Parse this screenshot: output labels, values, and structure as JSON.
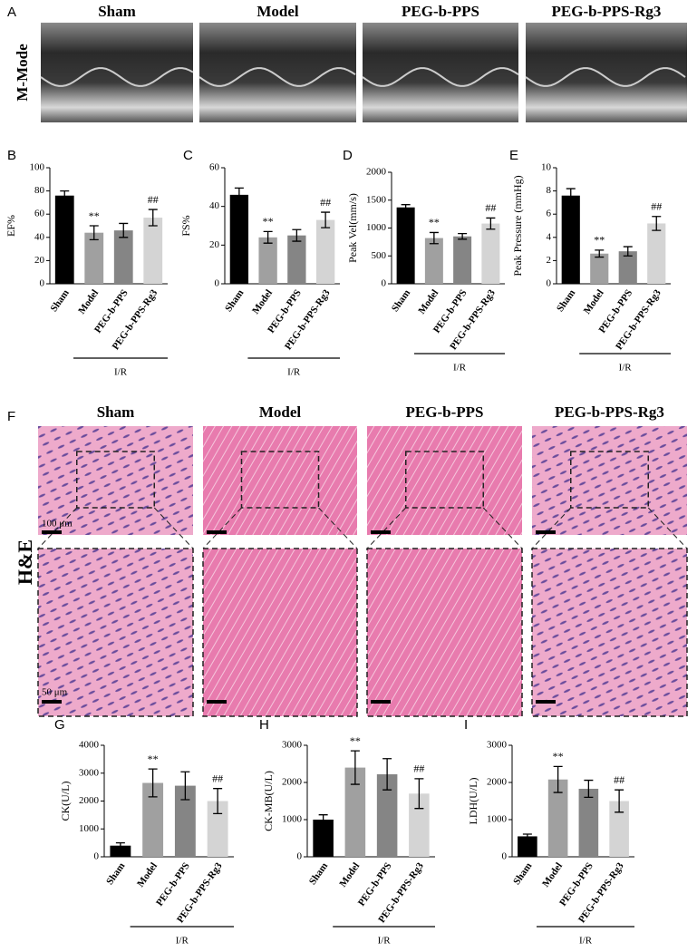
{
  "panel_a": {
    "letter": "A",
    "side_label": "M-Mode",
    "titles": [
      "Sham",
      "Model",
      "PEG-b-PPS",
      "PEG-b-PPS-Rg3"
    ]
  },
  "panel_f": {
    "letter": "F",
    "side_label": "H&E",
    "titles": [
      "Sham",
      "Model",
      "PEG-b-PPS",
      "PEG-b-PPS-Rg3"
    ],
    "scale_bars": [
      "100 μm",
      "50 μm"
    ]
  },
  "chart_data": [
    {
      "type": "bar",
      "letter": "B",
      "ylabel": "EF%",
      "categories": [
        "Sham",
        "Model",
        "PEG-b-PPS",
        "PEG-b-PPS-Rg3"
      ],
      "values": [
        76,
        44,
        46,
        57
      ],
      "errors": [
        4,
        6,
        6,
        7
      ],
      "value_annotations": [
        null,
        "**",
        null,
        "##"
      ],
      "colors": [
        "#000000",
        "#a0a0a0",
        "#858585",
        "#d4d4d4"
      ],
      "ylim": [
        0,
        100
      ],
      "yticks": [
        0,
        20,
        40,
        60,
        80,
        100
      ],
      "group_label": "I/R"
    },
    {
      "type": "bar",
      "letter": "C",
      "ylabel": "FS%",
      "categories": [
        "Sham",
        "Model",
        "PEG-b-PPS",
        "PEG-b-PPS-Rg3"
      ],
      "values": [
        46,
        24,
        25,
        33
      ],
      "errors": [
        3.5,
        3,
        3,
        4
      ],
      "value_annotations": [
        null,
        "**",
        null,
        "##"
      ],
      "colors": [
        "#000000",
        "#a0a0a0",
        "#858585",
        "#d4d4d4"
      ],
      "ylim": [
        0,
        60
      ],
      "yticks": [
        0,
        20,
        40,
        60
      ],
      "group_label": "I/R"
    },
    {
      "type": "bar",
      "letter": "D",
      "ylabel": "Peak Vel(mm/s)",
      "categories": [
        "Sham",
        "Model",
        "PEG-b-PPS",
        "PEG-b-PPS-Rg3"
      ],
      "values": [
        1370,
        820,
        850,
        1080
      ],
      "errors": [
        50,
        100,
        50,
        100
      ],
      "value_annotations": [
        null,
        "**",
        null,
        "##"
      ],
      "colors": [
        "#000000",
        "#a0a0a0",
        "#858585",
        "#d4d4d4"
      ],
      "ylim": [
        0,
        2000
      ],
      "yticks": [
        0,
        500,
        1000,
        1500,
        2000
      ],
      "group_label": "I/R"
    },
    {
      "type": "bar",
      "letter": "E",
      "ylabel": "Peak Pressure (mmHg)",
      "categories": [
        "Sham",
        "Model",
        "PEG-b-PPS",
        "PEG-b-PPS-Rg3"
      ],
      "values": [
        7.6,
        2.6,
        2.8,
        5.2
      ],
      "errors": [
        0.6,
        0.3,
        0.4,
        0.6
      ],
      "value_annotations": [
        null,
        "**",
        null,
        "##"
      ],
      "colors": [
        "#000000",
        "#a0a0a0",
        "#858585",
        "#d4d4d4"
      ],
      "ylim": [
        0,
        10
      ],
      "yticks": [
        0,
        2,
        4,
        6,
        8,
        10
      ],
      "group_label": "I/R"
    },
    {
      "type": "bar",
      "letter": "G",
      "ylabel": "CK(U/L)",
      "categories": [
        "Sham",
        "Model",
        "PEG-b-PPS",
        "PEG-b-PPS-Rg3"
      ],
      "values": [
        400,
        2650,
        2550,
        2000
      ],
      "errors": [
        100,
        500,
        500,
        450
      ],
      "value_annotations": [
        null,
        "**",
        null,
        "##"
      ],
      "colors": [
        "#000000",
        "#a0a0a0",
        "#858585",
        "#d4d4d4"
      ],
      "ylim": [
        0,
        4000
      ],
      "yticks": [
        0,
        1000,
        2000,
        3000,
        4000
      ],
      "group_label": "I/R"
    },
    {
      "type": "bar",
      "letter": "H",
      "ylabel": "CK-MB(U/L)",
      "categories": [
        "Sham",
        "Model",
        "PEG-b-PPS",
        "PEG-b-PPS-Rg3"
      ],
      "values": [
        1000,
        2400,
        2220,
        1700
      ],
      "errors": [
        130,
        450,
        420,
        400
      ],
      "value_annotations": [
        null,
        "**",
        null,
        "##"
      ],
      "colors": [
        "#000000",
        "#a0a0a0",
        "#858585",
        "#d4d4d4"
      ],
      "ylim": [
        0,
        3000
      ],
      "yticks": [
        0,
        1000,
        2000,
        3000
      ],
      "group_label": "I/R"
    },
    {
      "type": "bar",
      "letter": "I",
      "ylabel": "LDH(U/L)",
      "categories": [
        "Sham",
        "Model",
        "PEG-b-PPS",
        "PEG-b-PPS-Rg3"
      ],
      "values": [
        550,
        2080,
        1830,
        1500
      ],
      "errors": [
        60,
        350,
        230,
        300
      ],
      "value_annotations": [
        null,
        "**",
        null,
        "##"
      ],
      "colors": [
        "#000000",
        "#a0a0a0",
        "#858585",
        "#d4d4d4"
      ],
      "ylim": [
        0,
        3000
      ],
      "yticks": [
        0,
        1000,
        2000,
        3000
      ],
      "group_label": "I/R"
    }
  ]
}
